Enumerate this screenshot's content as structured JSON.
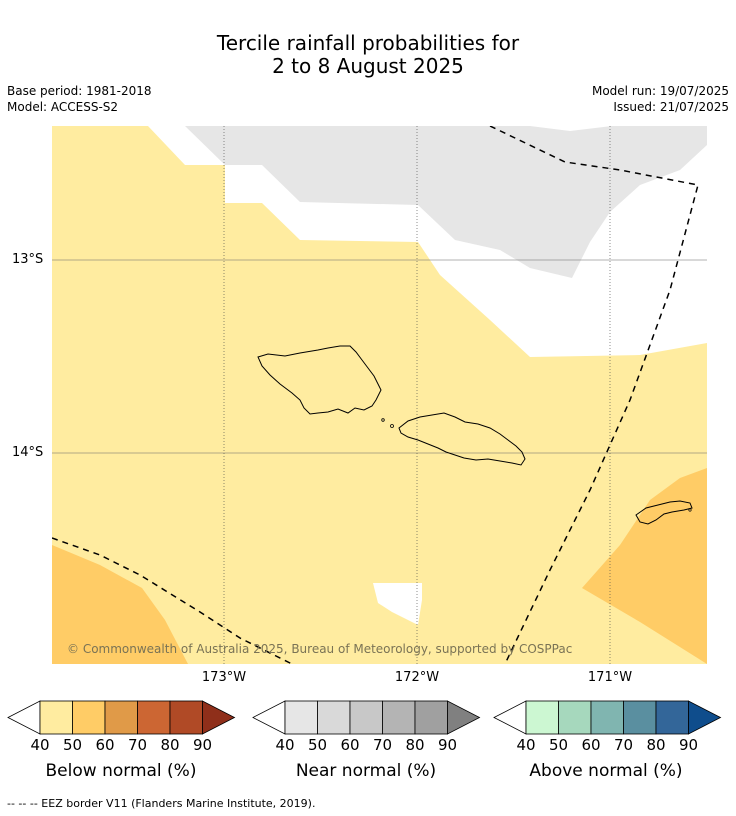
{
  "title": {
    "line1": "Tercile rainfall probabilities for",
    "line2": "2 to 8 August 2025"
  },
  "meta": {
    "base_period": "Base period: 1981-2018",
    "model": "Model: ACCESS-S2",
    "model_run": "Model run: 19/07/2025",
    "issued": "Issued: 21/07/2025"
  },
  "map": {
    "lat_labels": [
      "13°S",
      "14°S"
    ],
    "lon_labels": [
      "173°W",
      "172°W",
      "171°W"
    ],
    "copyright": "© Commonwealth of Australia 2025, Bureau of Meteorology, supported by COSPPac",
    "colors": {
      "below_40_50": "#ffeca0",
      "below_50_60": "#ffcc66",
      "near_40_50": "#e6e6e6",
      "ocean_background": "#ffffff"
    }
  },
  "colorbars": [
    {
      "title": "Below normal (%)",
      "ticks": [
        "40",
        "50",
        "60",
        "70",
        "80",
        "90"
      ],
      "colors": [
        "#ffeca0",
        "#ffcc66",
        "#e09a48",
        "#cc6633",
        "#b04a26",
        "#8f2f1a"
      ]
    },
    {
      "title": "Near normal (%)",
      "ticks": [
        "40",
        "50",
        "60",
        "70",
        "80",
        "90"
      ],
      "colors": [
        "#e6e6e6",
        "#d9d9d9",
        "#c8c8c8",
        "#b4b4b4",
        "#a0a0a0",
        "#808080"
      ]
    },
    {
      "title": "Above normal (%)",
      "ticks": [
        "40",
        "50",
        "60",
        "70",
        "80",
        "90"
      ],
      "colors": [
        "#ccf7d2",
        "#a6d8bd",
        "#80b5b0",
        "#5a8fa0",
        "#336699",
        "#0f4d8c"
      ]
    }
  ],
  "footer": "--  --  -- EEZ border V11 (Flanders Marine Institute, 2019)."
}
